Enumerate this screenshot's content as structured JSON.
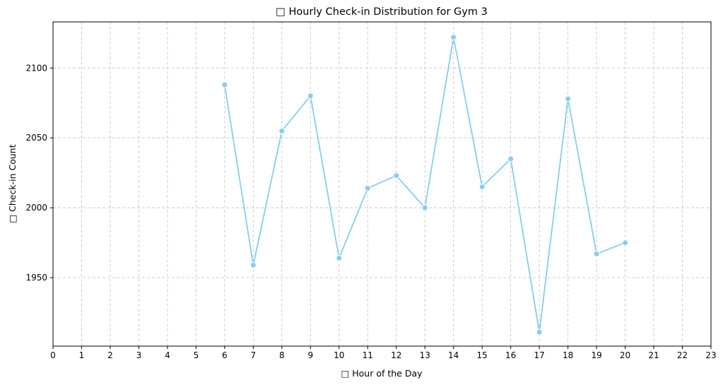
{
  "chart_data": {
    "type": "line",
    "title": "□ Hourly Check-in Distribution for Gym 3",
    "xlabel": "□ Hour of the Day",
    "ylabel": "□ Check-in Count",
    "x_ticks": [
      "0",
      "1",
      "2",
      "3",
      "4",
      "5",
      "6",
      "7",
      "8",
      "9",
      "10",
      "11",
      "12",
      "13",
      "14",
      "15",
      "16",
      "17",
      "18",
      "19",
      "20",
      "21",
      "22",
      "23"
    ],
    "y_ticks": [
      "1950",
      "2000",
      "2050",
      "2100"
    ],
    "xlim": [
      0,
      23
    ],
    "ylim": [
      1901,
      2133
    ],
    "grid": true,
    "series": [
      {
        "color": "#87ceeb",
        "x": [
          6,
          7,
          8,
          9,
          10,
          11,
          12,
          13,
          14,
          15,
          16,
          17,
          18,
          19,
          20
        ],
        "y": [
          2088,
          1959,
          2055,
          2080,
          1964,
          2014,
          2023,
          2000,
          2122,
          2015,
          2035,
          1911,
          2078,
          1967,
          1975
        ]
      }
    ]
  }
}
